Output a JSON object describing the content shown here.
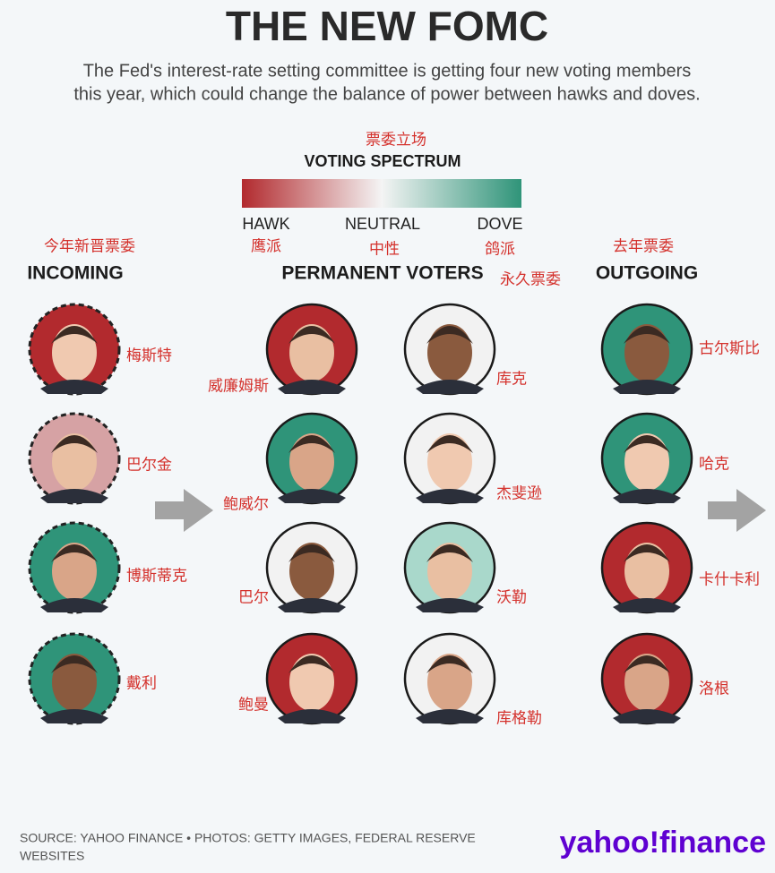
{
  "header": {
    "title": "THE NEW FOMC",
    "subtitle": [
      "The Fed's interest-rate setting committee is getting four new voting members",
      "this year, which could change the balance of power between hawks and doves."
    ]
  },
  "spectrum": {
    "annotation": "票委立场",
    "title": "VOTING SPECTRUM",
    "colors": [
      "#b22a2e",
      "#f4f4f4",
      "#2f9479"
    ],
    "labels": [
      {
        "text": "HAWK",
        "annotation": "鹰派"
      },
      {
        "text": "NEUTRAL",
        "annotation": "中性"
      },
      {
        "text": "DOVE",
        "annotation": "鸽派"
      }
    ]
  },
  "groups": {
    "incoming": {
      "title": "INCOMING",
      "annotation": "今年新晋票委",
      "members": [
        {
          "name": "梅斯特",
          "color": "#b22a2e"
        },
        {
          "name": "巴尔金",
          "color": "#d6a2a4"
        },
        {
          "name": "博斯蒂克",
          "color": "#2f9479"
        },
        {
          "name": "戴利",
          "color": "#2f9479"
        }
      ]
    },
    "permanent": {
      "title": "PERMANENT VOTERS",
      "annotation": "永久票委",
      "columns": [
        [
          {
            "name": "威廉姆斯",
            "color": "#b22a2e"
          },
          {
            "name": "鲍威尔",
            "color": "#2f9479"
          },
          {
            "name": "巴尔",
            "color": "#f2f2f2"
          },
          {
            "name": "鲍曼",
            "color": "#b22a2e"
          }
        ],
        [
          {
            "name": "库克",
            "color": "#f2f2f2"
          },
          {
            "name": "杰斐逊",
            "color": "#f2f2f2"
          },
          {
            "name": "沃勒",
            "color": "#a9d8cb"
          },
          {
            "name": "库格勒",
            "color": "#f2f2f2"
          }
        ]
      ]
    },
    "outgoing": {
      "title": "OUTGOING",
      "annotation": "去年票委",
      "members": [
        {
          "name": "古尔斯比",
          "color": "#2f9479"
        },
        {
          "name": "哈克",
          "color": "#2f9479"
        },
        {
          "name": "卡什卡利",
          "color": "#b22a2e"
        },
        {
          "name": "洛根",
          "color": "#b22a2e"
        }
      ]
    }
  },
  "footer": {
    "source": [
      "SOURCE: YAHOO FINANCE • PHOTOS: GETTY IMAGES, FEDERAL RESERVE",
      "WEBSITES"
    ],
    "logo": "yahoo!finance"
  }
}
